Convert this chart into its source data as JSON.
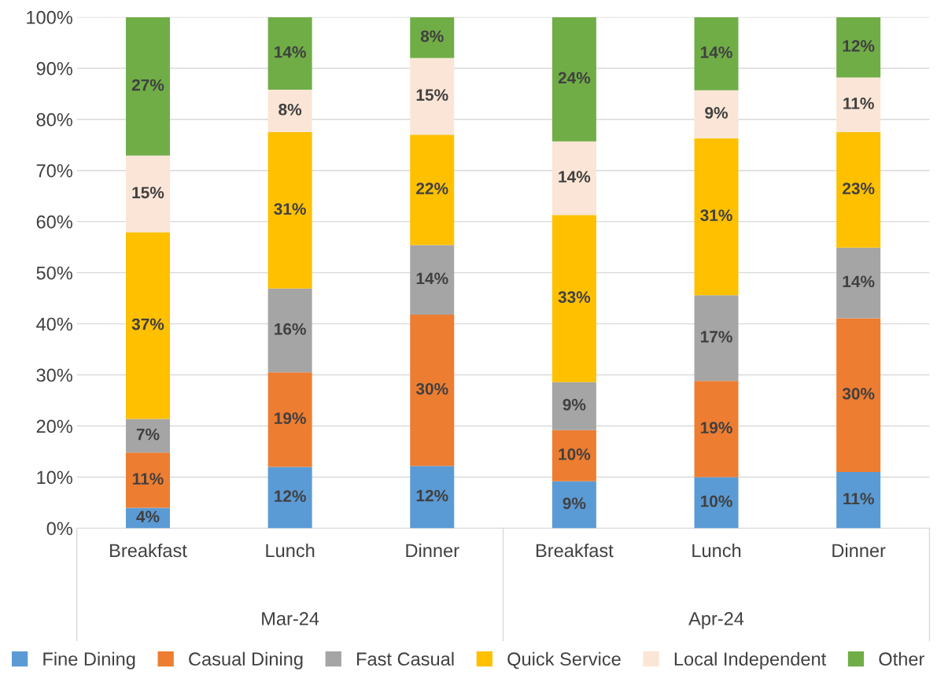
{
  "chart_data": {
    "type": "bar",
    "stacked": true,
    "categories": [
      "Breakfast",
      "Lunch",
      "Dinner",
      "Breakfast",
      "Lunch",
      "Dinner"
    ],
    "annotations": [
      "Mar-24",
      "Apr-24"
    ],
    "series": [
      {
        "name": "Fine Dining",
        "color": "#5b9bd5",
        "values": [
          4,
          12,
          12.2,
          9.2,
          10,
          11
        ],
        "value_labels": [
          "4%",
          "12%",
          "12%",
          "9%",
          "10%",
          "11%"
        ]
      },
      {
        "name": "Casual Dining",
        "color": "#ed7d31",
        "values": [
          10.8,
          18.5,
          29.6,
          10,
          18.8,
          30.1
        ],
        "value_labels": [
          "11%",
          "19%",
          "30%",
          "10%",
          "19%",
          "30%"
        ]
      },
      {
        "name": "Fast Casual",
        "color": "#a5a5a5",
        "values": [
          6.6,
          16.4,
          13.6,
          9.4,
          16.8,
          13.8
        ],
        "value_labels": [
          "7%",
          "16%",
          "14%",
          "9%",
          "17%",
          "14%"
        ]
      },
      {
        "name": "Quick Service",
        "color": "#ffc000",
        "values": [
          36.5,
          30.6,
          21.6,
          32.7,
          30.7,
          22.6
        ],
        "value_labels": [
          "37%",
          "31%",
          "22%",
          "33%",
          "31%",
          "23%"
        ]
      },
      {
        "name": "Local Independent",
        "color": "#fbe5d6",
        "values": [
          15,
          8.3,
          15,
          14.4,
          9.4,
          10.7
        ],
        "value_labels": [
          "15%",
          "8%",
          "15%",
          "14%",
          "9%",
          "11%"
        ]
      },
      {
        "name": "Other",
        "color": "#70ad47",
        "values": [
          27.1,
          14.2,
          8,
          24.3,
          14.3,
          11.8
        ],
        "value_labels": [
          "27%",
          "14%",
          "8%",
          "24%",
          "14%",
          "12%"
        ]
      }
    ],
    "ylim": [
      0,
      100
    ],
    "yticks": [
      {
        "value": 0,
        "label": "0%"
      },
      {
        "value": 10,
        "label": "10%"
      },
      {
        "value": 20,
        "label": "20%"
      },
      {
        "value": 30,
        "label": "30%"
      },
      {
        "value": 40,
        "label": "40%"
      },
      {
        "value": 50,
        "label": "50%"
      },
      {
        "value": 60,
        "label": "60%"
      },
      {
        "value": 70,
        "label": "70%"
      },
      {
        "value": 80,
        "label": "80%"
      },
      {
        "value": 90,
        "label": "90%"
      },
      {
        "value": 100,
        "label": "100%"
      }
    ],
    "grid": "y",
    "legend": "bottom"
  }
}
